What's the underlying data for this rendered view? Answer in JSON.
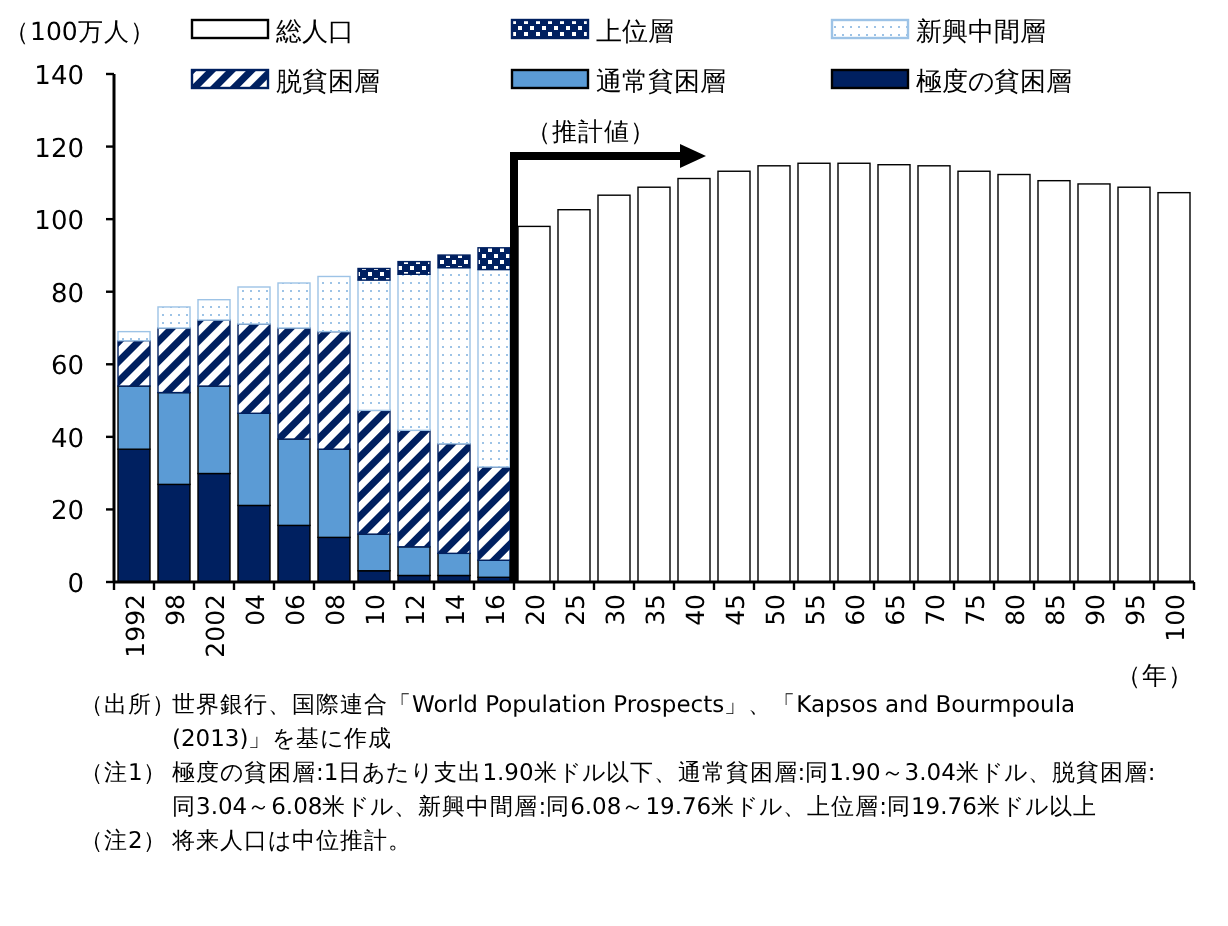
{
  "chart_data": {
    "type": "bar",
    "stacked": true,
    "ylabel": "（100万人）",
    "xlabel": "（年）",
    "categories": [
      "1992",
      "98",
      "2002",
      "04",
      "06",
      "08",
      "10",
      "12",
      "14",
      "16",
      "20",
      "25",
      "30",
      "35",
      "40",
      "45",
      "50",
      "55",
      "60",
      "65",
      "70",
      "75",
      "80",
      "85",
      "90",
      "95",
      "100"
    ],
    "ylim": [
      0,
      140
    ],
    "yticks": [
      0,
      20,
      40,
      60,
      80,
      100,
      120,
      140
    ],
    "grid": false,
    "legend": "top",
    "series": [
      {
        "name": "極度の貧困層",
        "color": "#002060",
        "values": [
          36.6,
          26.9,
          29.9,
          21.1,
          15.6,
          12.3,
          3.1,
          1.8,
          1.8,
          1.3,
          null,
          null,
          null,
          null,
          null,
          null,
          null,
          null,
          null,
          null,
          null,
          null,
          null,
          null,
          null,
          null,
          null
        ]
      },
      {
        "name": "通常貧困層",
        "color": "#5b9bd5",
        "values": [
          17.4,
          25.3,
          24.1,
          25.4,
          23.8,
          24.3,
          10.1,
          7.9,
          6.1,
          4.7,
          null,
          null,
          null,
          null,
          null,
          null,
          null,
          null,
          null,
          null,
          null,
          null,
          null,
          null,
          null,
          null,
          null
        ]
      },
      {
        "name": "脱貧困層",
        "color": "#002060",
        "values": [
          12.5,
          17.8,
          18.2,
          24.6,
          30.6,
          32.4,
          34.1,
          32.1,
          30.2,
          25.7,
          null,
          null,
          null,
          null,
          null,
          null,
          null,
          null,
          null,
          null,
          null,
          null,
          null,
          null,
          null,
          null,
          null
        ]
      },
      {
        "name": "新興中間層",
        "color": "#9dc3e6",
        "values": [
          2.5,
          5.8,
          5.6,
          10.2,
          12.4,
          15.2,
          35.9,
          43.0,
          48.5,
          54.4,
          null,
          null,
          null,
          null,
          null,
          null,
          null,
          null,
          null,
          null,
          null,
          null,
          null,
          null,
          null,
          null,
          null
        ]
      },
      {
        "name": "上位層",
        "color": "#002060",
        "values": [
          null,
          null,
          null,
          null,
          null,
          null,
          3.2,
          3.5,
          3.5,
          6.0,
          null,
          null,
          null,
          null,
          null,
          null,
          null,
          null,
          null,
          null,
          null,
          null,
          null,
          null,
          null,
          null,
          null
        ]
      },
      {
        "name": "総人口",
        "color": "#ffffff",
        "values": [
          null,
          null,
          null,
          null,
          null,
          null,
          null,
          null,
          null,
          null,
          98.0,
          102.6,
          106.6,
          108.8,
          111.2,
          113.2,
          114.7,
          115.4,
          115.4,
          115.0,
          114.7,
          113.2,
          112.3,
          110.6,
          109.7,
          108.8,
          107.3
        ]
      }
    ],
    "annotations": [
      "（推計値）",
      "（出所）世界銀行、国際連合「World Population Prospects」、「Kapsos and Bourmpoula (2013)」を基に作成",
      "（注1）極度の貧困層:1日あたり支出1.90米ドル以下、通常貧困層:同1.90～3.04米ドル、脱貧困層:同3.04～6.08米ドル、新興中間層:同6.08～19.76米ドル、上位層:同19.76米ドル以上",
      "（注2）将来人口は中位推計。"
    ]
  }
}
